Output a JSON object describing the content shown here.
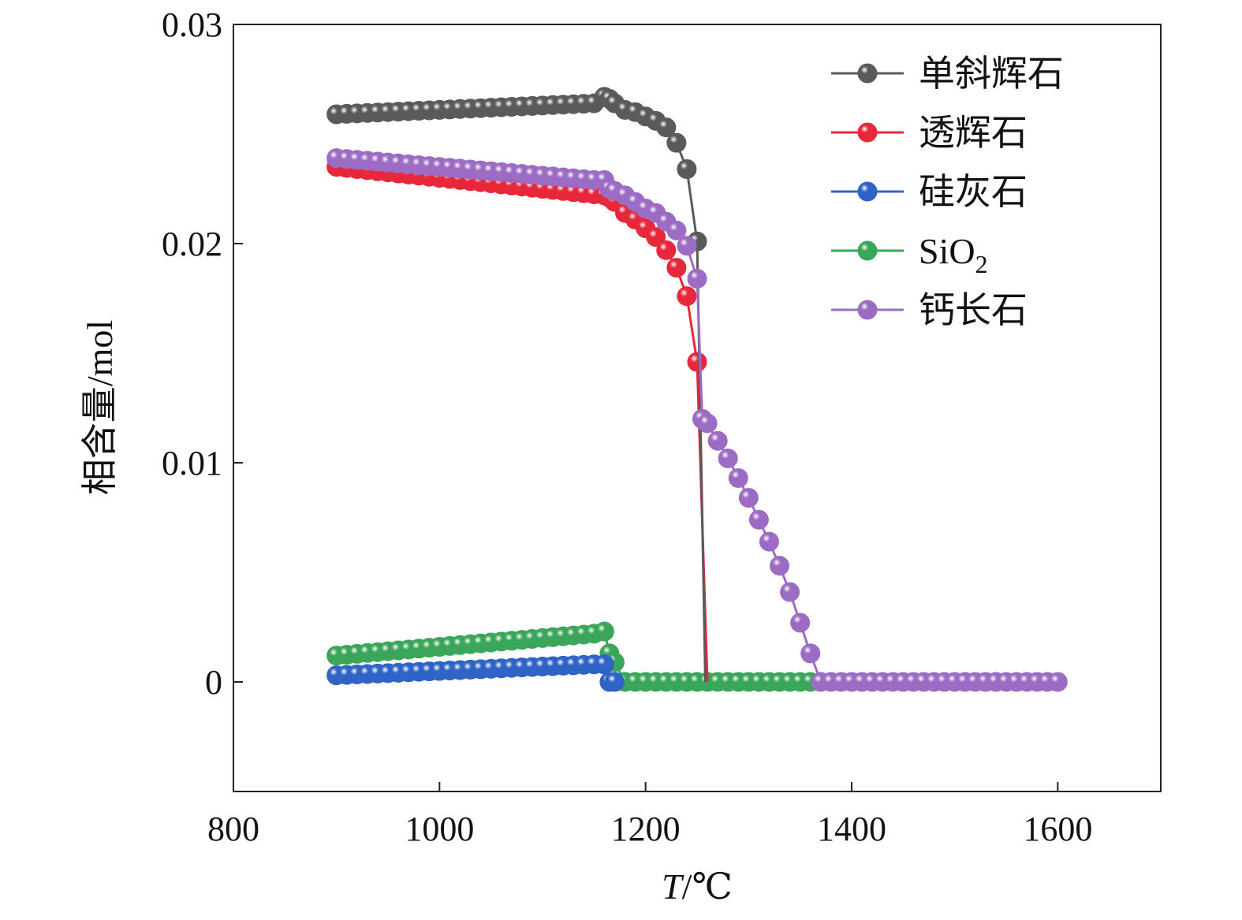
{
  "chart_data": {
    "type": "line",
    "xlabel": "T/℃",
    "xlabel_italic": "T",
    "xlabel_rest": "/℃",
    "ylabel": "相含量/mol",
    "xlim": [
      800,
      1700
    ],
    "ylim": [
      -0.005,
      0.03
    ],
    "xticks": [
      800,
      1000,
      1200,
      1400,
      1600
    ],
    "xtick_labels": [
      "800",
      "1000",
      "1200",
      "1400",
      "1600"
    ],
    "yticks": [
      0,
      0.01,
      0.02,
      0.03
    ],
    "ytick_labels": [
      "0",
      "0.01",
      "0.02",
      "0.03"
    ],
    "grid": false,
    "legend": "top-right",
    "marker": "sphere",
    "series": [
      {
        "name": "单斜辉石",
        "color": "#5a5a5a",
        "x": [
          900,
          910,
          920,
          930,
          940,
          950,
          960,
          970,
          980,
          990,
          1000,
          1010,
          1020,
          1030,
          1040,
          1050,
          1060,
          1070,
          1080,
          1090,
          1100,
          1110,
          1120,
          1130,
          1140,
          1150,
          1160,
          1165,
          1170,
          1180,
          1190,
          1200,
          1210,
          1220,
          1230,
          1240,
          1250
        ],
        "y": [
          0.0259,
          0.02592,
          0.02594,
          0.02596,
          0.02598,
          0.026,
          0.02602,
          0.02604,
          0.02606,
          0.02608,
          0.0261,
          0.02612,
          0.02614,
          0.02616,
          0.02618,
          0.0262,
          0.02622,
          0.02624,
          0.02626,
          0.02628,
          0.0263,
          0.02632,
          0.02634,
          0.02636,
          0.02638,
          0.0264,
          0.0267,
          0.0266,
          0.0264,
          0.0261,
          0.026,
          0.0258,
          0.0256,
          0.0253,
          0.0246,
          0.0234,
          0.0201
        ],
        "line_extra_x": [
          1258
        ],
        "line_extra_y": [
          0.0
        ]
      },
      {
        "name": "透辉石",
        "color": "#e8283a",
        "x": [
          900,
          910,
          920,
          930,
          940,
          950,
          960,
          970,
          980,
          990,
          1000,
          1010,
          1020,
          1030,
          1040,
          1050,
          1060,
          1070,
          1080,
          1090,
          1100,
          1110,
          1120,
          1130,
          1140,
          1150,
          1160,
          1165,
          1170,
          1180,
          1190,
          1200,
          1210,
          1220,
          1230,
          1240,
          1250
        ],
        "y": [
          0.0235,
          0.02345,
          0.0234,
          0.02335,
          0.0233,
          0.02325,
          0.0232,
          0.02315,
          0.0231,
          0.02305,
          0.023,
          0.02295,
          0.0229,
          0.02285,
          0.0228,
          0.02275,
          0.0227,
          0.02265,
          0.0226,
          0.02255,
          0.0225,
          0.02245,
          0.0224,
          0.02235,
          0.0223,
          0.02225,
          0.0222,
          0.0221,
          0.0219,
          0.0214,
          0.0211,
          0.0207,
          0.0203,
          0.0197,
          0.0189,
          0.0176,
          0.0146
        ],
        "line_extra_x": [
          1260
        ],
        "line_extra_y": [
          0.0
        ]
      },
      {
        "name": "硅灰石",
        "color": "#2f63c6",
        "x": [
          900,
          910,
          920,
          930,
          940,
          950,
          960,
          970,
          980,
          990,
          1000,
          1010,
          1020,
          1030,
          1040,
          1050,
          1060,
          1070,
          1080,
          1090,
          1100,
          1110,
          1120,
          1130,
          1140,
          1150,
          1160,
          1165,
          1170
        ],
        "y": [
          0.0003,
          0.00032,
          0.00034,
          0.00036,
          0.00038,
          0.0004,
          0.00042,
          0.00044,
          0.00046,
          0.00048,
          0.0005,
          0.00052,
          0.00054,
          0.00056,
          0.00058,
          0.0006,
          0.00062,
          0.00064,
          0.00066,
          0.00068,
          0.0007,
          0.00072,
          0.00074,
          0.00076,
          0.00078,
          0.0008,
          0.0008,
          0.0,
          0.0
        ],
        "line_extra_x": [],
        "line_extra_y": []
      },
      {
        "name": "SiO2",
        "name_base": "SiO",
        "name_sub": "2",
        "color": "#3aa65a",
        "x": [
          900,
          910,
          920,
          930,
          940,
          950,
          960,
          970,
          980,
          990,
          1000,
          1010,
          1020,
          1030,
          1040,
          1050,
          1060,
          1070,
          1080,
          1090,
          1100,
          1110,
          1120,
          1130,
          1140,
          1150,
          1160,
          1165,
          1170,
          1180,
          1190,
          1200,
          1210,
          1220,
          1230,
          1240,
          1250,
          1260,
          1270,
          1280,
          1290,
          1300,
          1310,
          1320,
          1330,
          1340,
          1350,
          1360
        ],
        "y": [
          0.0012,
          0.00124,
          0.00128,
          0.00132,
          0.00136,
          0.0014,
          0.00144,
          0.00148,
          0.00152,
          0.00156,
          0.0016,
          0.00164,
          0.00168,
          0.00172,
          0.00176,
          0.0018,
          0.00184,
          0.00188,
          0.00192,
          0.00196,
          0.002,
          0.00204,
          0.00208,
          0.00212,
          0.00216,
          0.0022,
          0.0023,
          0.0013,
          0.0009,
          0.0,
          0.0,
          0.0,
          0.0,
          0.0,
          0.0,
          0.0,
          0.0,
          0.0,
          0.0,
          0.0,
          0.0,
          0.0,
          0.0,
          0.0,
          0.0,
          0.0,
          0.0,
          0.0
        ],
        "line_extra_x": [],
        "line_extra_y": []
      },
      {
        "name": "钙长石",
        "color": "#9c6cc4",
        "x": [
          900,
          910,
          920,
          930,
          940,
          950,
          960,
          970,
          980,
          990,
          1000,
          1010,
          1020,
          1030,
          1040,
          1050,
          1060,
          1070,
          1080,
          1090,
          1100,
          1110,
          1120,
          1130,
          1140,
          1150,
          1160,
          1165,
          1170,
          1180,
          1190,
          1200,
          1210,
          1220,
          1230,
          1240,
          1250,
          1255,
          1260,
          1270,
          1280,
          1290,
          1300,
          1310,
          1320,
          1330,
          1340,
          1350,
          1360,
          1370,
          1380,
          1390,
          1400,
          1410,
          1420,
          1430,
          1440,
          1450,
          1460,
          1470,
          1480,
          1490,
          1500,
          1510,
          1520,
          1530,
          1540,
          1550,
          1560,
          1570,
          1580,
          1590,
          1600
        ],
        "y": [
          0.0239,
          0.02386,
          0.02382,
          0.02378,
          0.02374,
          0.0237,
          0.02366,
          0.02362,
          0.02358,
          0.02354,
          0.0235,
          0.02346,
          0.02342,
          0.02338,
          0.02334,
          0.0233,
          0.02326,
          0.02322,
          0.02318,
          0.02314,
          0.0231,
          0.02306,
          0.02302,
          0.02298,
          0.02294,
          0.0229,
          0.0229,
          0.0225,
          0.0224,
          0.0222,
          0.0219,
          0.0216,
          0.0214,
          0.021,
          0.0206,
          0.0199,
          0.0184,
          0.012,
          0.0118,
          0.011,
          0.0102,
          0.0093,
          0.0084,
          0.0074,
          0.0064,
          0.0053,
          0.0041,
          0.0027,
          0.0013,
          0.0,
          0.0,
          0.0,
          0.0,
          0.0,
          0.0,
          0.0,
          0.0,
          0.0,
          0.0,
          0.0,
          0.0,
          0.0,
          0.0,
          0.0,
          0.0,
          0.0,
          0.0,
          0.0,
          0.0,
          0.0,
          0.0,
          0.0,
          0.0
        ],
        "line_extra_x": [],
        "line_extra_y": []
      }
    ]
  }
}
